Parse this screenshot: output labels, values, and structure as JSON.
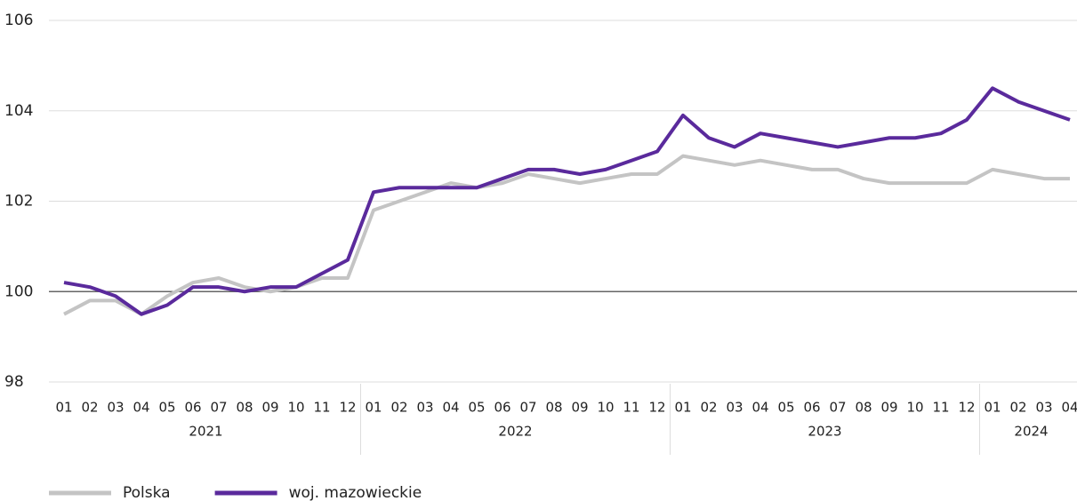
{
  "chart_data": {
    "type": "line",
    "categories": [
      "01",
      "02",
      "03",
      "04",
      "05",
      "06",
      "07",
      "08",
      "09",
      "10",
      "11",
      "12",
      "01",
      "02",
      "03",
      "04",
      "05",
      "06",
      "07",
      "08",
      "09",
      "10",
      "11",
      "12",
      "01",
      "02",
      "03",
      "04",
      "05",
      "06",
      "07",
      "08",
      "09",
      "10",
      "11",
      "12",
      "01",
      "02",
      "03",
      "04"
    ],
    "year_labels": [
      "2021",
      "2022",
      "2023",
      "2024"
    ],
    "series": [
      {
        "name": "Polska",
        "color": "#c4c4c4",
        "values": [
          99.5,
          99.8,
          99.8,
          99.5,
          99.9,
          100.2,
          100.3,
          100.1,
          100.0,
          100.1,
          100.3,
          100.3,
          101.8,
          102.0,
          102.2,
          102.4,
          102.3,
          102.4,
          102.6,
          102.5,
          102.4,
          102.5,
          102.6,
          102.6,
          103.0,
          102.9,
          102.8,
          102.9,
          102.8,
          102.7,
          102.7,
          102.5,
          102.4,
          102.4,
          102.4,
          102.4,
          102.7,
          102.6,
          102.5,
          102.5
        ]
      },
      {
        "name": "woj. mazowieckie",
        "color": "#5a2a9c",
        "values": [
          100.2,
          100.1,
          99.9,
          99.5,
          99.7,
          100.1,
          100.1,
          100.0,
          100.1,
          100.1,
          100.4,
          100.7,
          102.2,
          102.3,
          102.3,
          102.3,
          102.3,
          102.5,
          102.7,
          102.7,
          102.6,
          102.7,
          102.9,
          103.1,
          103.9,
          103.4,
          103.2,
          103.5,
          103.4,
          103.3,
          103.2,
          103.3,
          103.4,
          103.4,
          103.5,
          103.8,
          104.5,
          104.2,
          104.0,
          103.8
        ]
      }
    ],
    "ylim": [
      98,
      106
    ],
    "yticks": [
      98,
      100,
      102,
      104,
      106
    ],
    "grid": true,
    "reference_line": 100,
    "legend": "bottom-left"
  }
}
